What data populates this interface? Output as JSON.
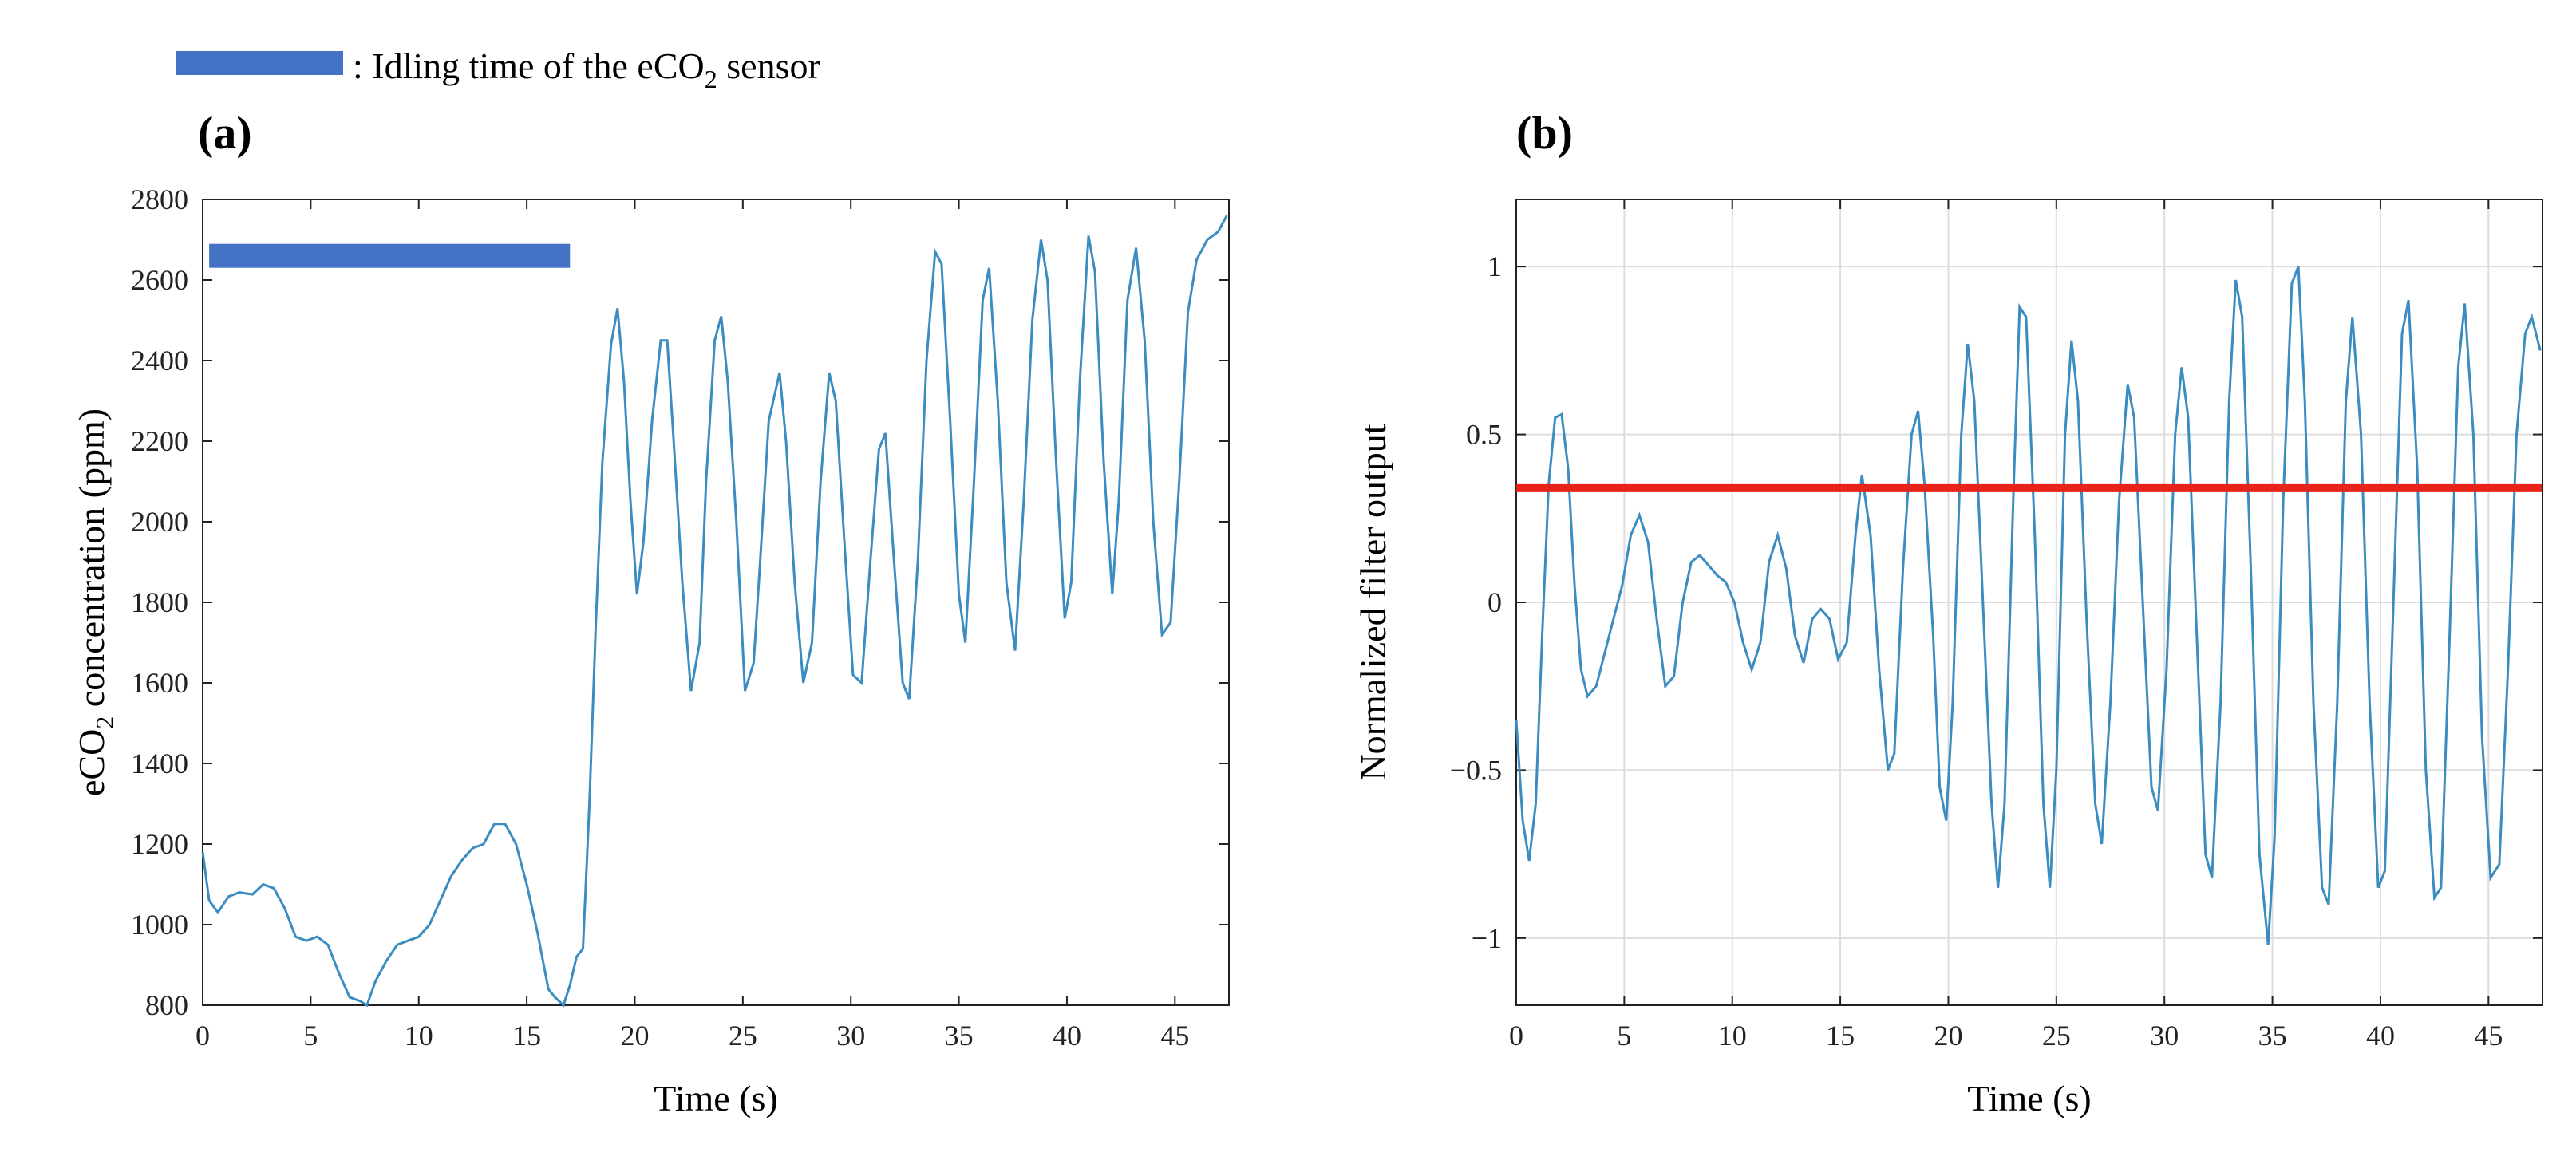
{
  "legend": {
    "color": "#4472c4",
    "text": ": Idling time of the eCO",
    "subscript": "2",
    "suffix": " sensor"
  },
  "chart_data": [
    {
      "panel_label": "(a)",
      "type": "line",
      "xlabel": "Time (s)",
      "ylabel_main": "eCO",
      "ylabel_sub": "2",
      "ylabel_rest": " concentration (ppm)",
      "xlim": [
        0,
        47.5
      ],
      "ylim": [
        800,
        2800
      ],
      "xticks": [
        0,
        5,
        10,
        15,
        20,
        25,
        30,
        35,
        40,
        45
      ],
      "yticks": [
        800,
        1000,
        1200,
        1400,
        1600,
        1800,
        2000,
        2200,
        2400,
        2600,
        2800
      ],
      "grid": false,
      "line_color": "#3a8cc1",
      "idle_bar": {
        "x_start": 0.3,
        "x_end": 17.0,
        "y": 2660,
        "color": "#4472c4"
      },
      "series": [
        {
          "name": "eCO2",
          "points": [
            [
              0,
              1180
            ],
            [
              0.3,
              1060
            ],
            [
              0.7,
              1030
            ],
            [
              1.2,
              1070
            ],
            [
              1.7,
              1080
            ],
            [
              2.3,
              1075
            ],
            [
              2.8,
              1100
            ],
            [
              3.3,
              1090
            ],
            [
              3.8,
              1040
            ],
            [
              4.3,
              970
            ],
            [
              4.8,
              960
            ],
            [
              5.3,
              970
            ],
            [
              5.8,
              950
            ],
            [
              6.3,
              880
            ],
            [
              6.8,
              820
            ],
            [
              7.3,
              810
            ],
            [
              7.6,
              800
            ],
            [
              8.0,
              860
            ],
            [
              8.5,
              910
            ],
            [
              9.0,
              950
            ],
            [
              9.5,
              960
            ],
            [
              10.0,
              970
            ],
            [
              10.5,
              1000
            ],
            [
              11.0,
              1060
            ],
            [
              11.5,
              1120
            ],
            [
              12.0,
              1160
            ],
            [
              12.5,
              1190
            ],
            [
              13.0,
              1200
            ],
            [
              13.5,
              1250
            ],
            [
              14.0,
              1250
            ],
            [
              14.5,
              1200
            ],
            [
              15.0,
              1100
            ],
            [
              15.5,
              980
            ],
            [
              16.0,
              840
            ],
            [
              16.3,
              820
            ],
            [
              16.7,
              800
            ],
            [
              17.0,
              850
            ],
            [
              17.3,
              920
            ],
            [
              17.6,
              940
            ],
            [
              17.9,
              1300
            ],
            [
              18.2,
              1750
            ],
            [
              18.5,
              2150
            ],
            [
              18.9,
              2440
            ],
            [
              19.2,
              2530
            ],
            [
              19.5,
              2350
            ],
            [
              19.8,
              2050
            ],
            [
              20.1,
              1820
            ],
            [
              20.4,
              1950
            ],
            [
              20.8,
              2250
            ],
            [
              21.2,
              2450
            ],
            [
              21.5,
              2450
            ],
            [
              21.8,
              2200
            ],
            [
              22.2,
              1850
            ],
            [
              22.6,
              1580
            ],
            [
              23.0,
              1700
            ],
            [
              23.3,
              2100
            ],
            [
              23.7,
              2450
            ],
            [
              24.0,
              2510
            ],
            [
              24.3,
              2350
            ],
            [
              24.7,
              2000
            ],
            [
              25.1,
              1580
            ],
            [
              25.5,
              1650
            ],
            [
              25.8,
              1900
            ],
            [
              26.2,
              2250
            ],
            [
              26.7,
              2370
            ],
            [
              27.0,
              2200
            ],
            [
              27.4,
              1850
            ],
            [
              27.8,
              1600
            ],
            [
              28.2,
              1700
            ],
            [
              28.6,
              2100
            ],
            [
              29.0,
              2370
            ],
            [
              29.3,
              2300
            ],
            [
              29.7,
              1950
            ],
            [
              30.1,
              1620
            ],
            [
              30.5,
              1600
            ],
            [
              30.9,
              1900
            ],
            [
              31.3,
              2180
            ],
            [
              31.6,
              2220
            ],
            [
              32.0,
              1900
            ],
            [
              32.4,
              1600
            ],
            [
              32.7,
              1560
            ],
            [
              33.1,
              1900
            ],
            [
              33.5,
              2400
            ],
            [
              33.9,
              2670
            ],
            [
              34.2,
              2640
            ],
            [
              34.6,
              2250
            ],
            [
              35.0,
              1820
            ],
            [
              35.3,
              1700
            ],
            [
              35.7,
              2100
            ],
            [
              36.1,
              2550
            ],
            [
              36.4,
              2630
            ],
            [
              36.8,
              2300
            ],
            [
              37.2,
              1850
            ],
            [
              37.6,
              1680
            ],
            [
              38.0,
              2050
            ],
            [
              38.4,
              2500
            ],
            [
              38.8,
              2700
            ],
            [
              39.1,
              2600
            ],
            [
              39.5,
              2150
            ],
            [
              39.9,
              1760
            ],
            [
              40.2,
              1850
            ],
            [
              40.6,
              2350
            ],
            [
              41.0,
              2710
            ],
            [
              41.3,
              2620
            ],
            [
              41.7,
              2150
            ],
            [
              42.1,
              1820
            ],
            [
              42.4,
              2050
            ],
            [
              42.8,
              2550
            ],
            [
              43.2,
              2680
            ],
            [
              43.6,
              2450
            ],
            [
              44.0,
              2000
            ],
            [
              44.4,
              1720
            ],
            [
              44.8,
              1750
            ],
            [
              45.2,
              2100
            ],
            [
              45.6,
              2520
            ],
            [
              46.0,
              2650
            ],
            [
              46.5,
              2700
            ],
            [
              47.0,
              2720
            ],
            [
              47.4,
              2760
            ]
          ]
        }
      ]
    },
    {
      "panel_label": "(b)",
      "type": "line",
      "xlabel": "Time (s)",
      "ylabel": "Normalized filter output",
      "xlim": [
        0,
        47.5
      ],
      "ylim": [
        -1.2,
        1.2
      ],
      "xticks": [
        0,
        5,
        10,
        15,
        20,
        25,
        30,
        35,
        40,
        45
      ],
      "yticks": [
        -1,
        -0.5,
        0,
        0.5,
        1
      ],
      "ytick_labels": [
        "−1",
        "−0.5",
        "0",
        "0.5",
        "1"
      ],
      "grid": true,
      "line_color": "#3a8cc1",
      "threshold": {
        "y": 0.34,
        "color": "#e8231a"
      },
      "series": [
        {
          "name": "Filter output",
          "points": [
            [
              0,
              -0.35
            ],
            [
              0.3,
              -0.65
            ],
            [
              0.6,
              -0.77
            ],
            [
              0.9,
              -0.6
            ],
            [
              1.2,
              -0.1
            ],
            [
              1.5,
              0.35
            ],
            [
              1.8,
              0.55
            ],
            [
              2.1,
              0.56
            ],
            [
              2.4,
              0.4
            ],
            [
              2.7,
              0.05
            ],
            [
              3.0,
              -0.2
            ],
            [
              3.3,
              -0.28
            ],
            [
              3.7,
              -0.25
            ],
            [
              4.1,
              -0.15
            ],
            [
              4.5,
              -0.05
            ],
            [
              4.9,
              0.05
            ],
            [
              5.3,
              0.2
            ],
            [
              5.7,
              0.26
            ],
            [
              6.1,
              0.18
            ],
            [
              6.5,
              -0.05
            ],
            [
              6.9,
              -0.25
            ],
            [
              7.3,
              -0.22
            ],
            [
              7.7,
              0.0
            ],
            [
              8.1,
              0.12
            ],
            [
              8.5,
              0.14
            ],
            [
              8.9,
              0.11
            ],
            [
              9.3,
              0.08
            ],
            [
              9.7,
              0.06
            ],
            [
              10.1,
              0.0
            ],
            [
              10.5,
              -0.12
            ],
            [
              10.9,
              -0.2
            ],
            [
              11.3,
              -0.12
            ],
            [
              11.7,
              0.12
            ],
            [
              12.1,
              0.2
            ],
            [
              12.5,
              0.1
            ],
            [
              12.9,
              -0.1
            ],
            [
              13.3,
              -0.18
            ],
            [
              13.7,
              -0.05
            ],
            [
              14.1,
              -0.02
            ],
            [
              14.5,
              -0.05
            ],
            [
              14.9,
              -0.17
            ],
            [
              15.3,
              -0.12
            ],
            [
              15.7,
              0.2
            ],
            [
              16.0,
              0.38
            ],
            [
              16.4,
              0.2
            ],
            [
              16.8,
              -0.2
            ],
            [
              17.2,
              -0.5
            ],
            [
              17.5,
              -0.45
            ],
            [
              17.9,
              0.1
            ],
            [
              18.3,
              0.5
            ],
            [
              18.6,
              0.57
            ],
            [
              18.9,
              0.35
            ],
            [
              19.3,
              -0.1
            ],
            [
              19.6,
              -0.55
            ],
            [
              19.9,
              -0.65
            ],
            [
              20.2,
              -0.3
            ],
            [
              20.6,
              0.5
            ],
            [
              20.9,
              0.77
            ],
            [
              21.2,
              0.6
            ],
            [
              21.6,
              0.0
            ],
            [
              22.0,
              -0.6
            ],
            [
              22.3,
              -0.85
            ],
            [
              22.6,
              -0.6
            ],
            [
              23.0,
              0.3
            ],
            [
              23.3,
              0.88
            ],
            [
              23.6,
              0.85
            ],
            [
              24.0,
              0.2
            ],
            [
              24.4,
              -0.6
            ],
            [
              24.7,
              -0.85
            ],
            [
              25.0,
              -0.5
            ],
            [
              25.4,
              0.5
            ],
            [
              25.7,
              0.78
            ],
            [
              26.0,
              0.6
            ],
            [
              26.4,
              -0.05
            ],
            [
              26.8,
              -0.6
            ],
            [
              27.1,
              -0.72
            ],
            [
              27.5,
              -0.3
            ],
            [
              27.9,
              0.3
            ],
            [
              28.3,
              0.65
            ],
            [
              28.6,
              0.55
            ],
            [
              29.0,
              0.0
            ],
            [
              29.4,
              -0.55
            ],
            [
              29.7,
              -0.62
            ],
            [
              30.1,
              -0.2
            ],
            [
              30.5,
              0.5
            ],
            [
              30.8,
              0.7
            ],
            [
              31.1,
              0.55
            ],
            [
              31.5,
              -0.1
            ],
            [
              31.9,
              -0.75
            ],
            [
              32.2,
              -0.82
            ],
            [
              32.6,
              -0.3
            ],
            [
              33.0,
              0.6
            ],
            [
              33.3,
              0.96
            ],
            [
              33.6,
              0.85
            ],
            [
              34.0,
              0.1
            ],
            [
              34.4,
              -0.75
            ],
            [
              34.8,
              -1.02
            ],
            [
              35.1,
              -0.7
            ],
            [
              35.5,
              0.3
            ],
            [
              35.9,
              0.95
            ],
            [
              36.2,
              1.0
            ],
            [
              36.5,
              0.6
            ],
            [
              36.9,
              -0.3
            ],
            [
              37.3,
              -0.85
            ],
            [
              37.6,
              -0.9
            ],
            [
              38.0,
              -0.3
            ],
            [
              38.4,
              0.6
            ],
            [
              38.7,
              0.85
            ],
            [
              39.1,
              0.5
            ],
            [
              39.5,
              -0.3
            ],
            [
              39.9,
              -0.85
            ],
            [
              40.2,
              -0.8
            ],
            [
              40.6,
              0.0
            ],
            [
              41.0,
              0.8
            ],
            [
              41.3,
              0.9
            ],
            [
              41.7,
              0.4
            ],
            [
              42.1,
              -0.5
            ],
            [
              42.5,
              -0.88
            ],
            [
              42.8,
              -0.85
            ],
            [
              43.2,
              -0.1
            ],
            [
              43.6,
              0.7
            ],
            [
              43.9,
              0.89
            ],
            [
              44.3,
              0.5
            ],
            [
              44.7,
              -0.4
            ],
            [
              45.1,
              -0.82
            ],
            [
              45.5,
              -0.78
            ],
            [
              45.9,
              -0.2
            ],
            [
              46.3,
              0.5
            ],
            [
              46.7,
              0.8
            ],
            [
              47.0,
              0.85
            ],
            [
              47.4,
              0.75
            ]
          ]
        }
      ]
    }
  ]
}
